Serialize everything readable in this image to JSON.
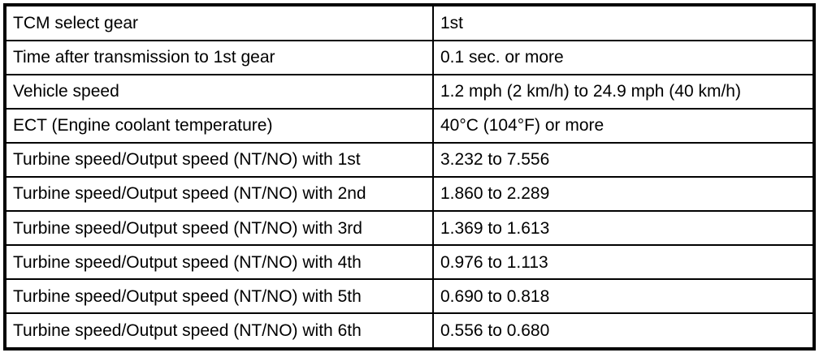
{
  "table": {
    "rows": [
      {
        "label": "TCM select gear",
        "value": "1st"
      },
      {
        "label": "Time after transmission to 1st gear",
        "value": "0.1 sec. or more"
      },
      {
        "label": "Vehicle speed",
        "value": "1.2 mph (2 km/h) to 24.9 mph (40 km/h)"
      },
      {
        "label": "ECT (Engine coolant temperature)",
        "value": "40°C (104°F) or more"
      },
      {
        "label": "Turbine speed/Output speed (NT/NO) with 1st",
        "value": "3.232 to 7.556"
      },
      {
        "label": "Turbine speed/Output speed (NT/NO) with 2nd",
        "value": "1.860 to 2.289"
      },
      {
        "label": "Turbine speed/Output speed (NT/NO) with 3rd",
        "value": "1.369 to 1.613"
      },
      {
        "label": "Turbine speed/Output speed (NT/NO) with 4th",
        "value": "0.976 to 1.113"
      },
      {
        "label": "Turbine speed/Output speed (NT/NO) with 5th",
        "value": "0.690 to 0.818"
      },
      {
        "label": "Turbine speed/Output speed (NT/NO) with 6th",
        "value": "0.556 to 0.680"
      }
    ],
    "colors": {
      "border": "#000000",
      "text": "#000000",
      "background": "#ffffff"
    }
  }
}
